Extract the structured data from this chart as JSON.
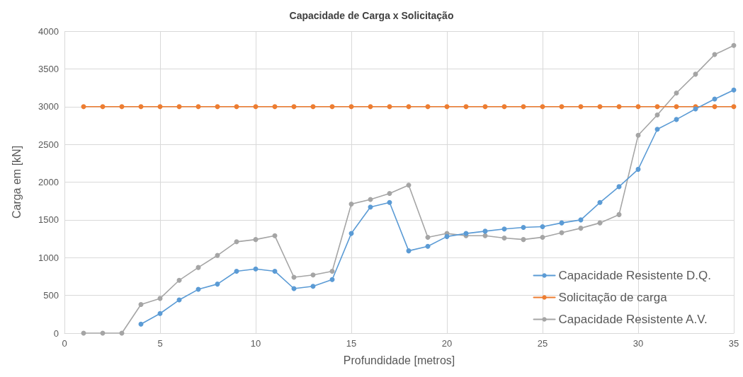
{
  "chart_data": {
    "type": "line",
    "title": "Capacidade de Carga x Solicitação",
    "xlabel": "Profundidade [metros]",
    "ylabel": "Carga em [kN]",
    "x": [
      1,
      2,
      3,
      4,
      5,
      6,
      7,
      8,
      9,
      10,
      11,
      12,
      13,
      14,
      15,
      16,
      17,
      18,
      19,
      20,
      21,
      22,
      23,
      24,
      25,
      26,
      27,
      28,
      29,
      30,
      31,
      32,
      33,
      34,
      35
    ],
    "series": [
      {
        "name": "Capacidade Resistente D.Q.",
        "color": "#5b9bd5",
        "values": [
          null,
          null,
          null,
          120,
          260,
          440,
          580,
          650,
          820,
          850,
          820,
          590,
          620,
          710,
          1320,
          1670,
          1730,
          1090,
          1150,
          1280,
          1320,
          1350,
          1380,
          1400,
          1410,
          1460,
          1500,
          1730,
          1940,
          2170,
          2700,
          2830,
          2970,
          3100,
          3220
        ]
      },
      {
        "name": "Solicitação de carga",
        "color": "#ed7d31",
        "values": [
          3000,
          3000,
          3000,
          3000,
          3000,
          3000,
          3000,
          3000,
          3000,
          3000,
          3000,
          3000,
          3000,
          3000,
          3000,
          3000,
          3000,
          3000,
          3000,
          3000,
          3000,
          3000,
          3000,
          3000,
          3000,
          3000,
          3000,
          3000,
          3000,
          3000,
          3000,
          3000,
          3000,
          3000,
          3000
        ]
      },
      {
        "name": "Capacidade Resistente A.V.",
        "color": "#a5a5a5",
        "values": [
          0,
          0,
          0,
          380,
          460,
          700,
          870,
          1030,
          1210,
          1240,
          1290,
          740,
          770,
          820,
          1710,
          1770,
          1850,
          1960,
          1270,
          1320,
          1290,
          1290,
          1260,
          1240,
          1270,
          1330,
          1390,
          1460,
          1570,
          2620,
          2890,
          3180,
          3430,
          3690,
          3810
        ]
      }
    ],
    "xlim": [
      0,
      35
    ],
    "xticks": [
      0,
      5,
      10,
      15,
      20,
      25,
      30,
      35
    ],
    "ylim": [
      0,
      4000
    ],
    "yticks": [
      0,
      500,
      1000,
      1500,
      2000,
      2500,
      3000,
      3500,
      4000
    ],
    "grid": true,
    "legend": "bottom right",
    "marker": "circle",
    "line_style": "solid"
  }
}
